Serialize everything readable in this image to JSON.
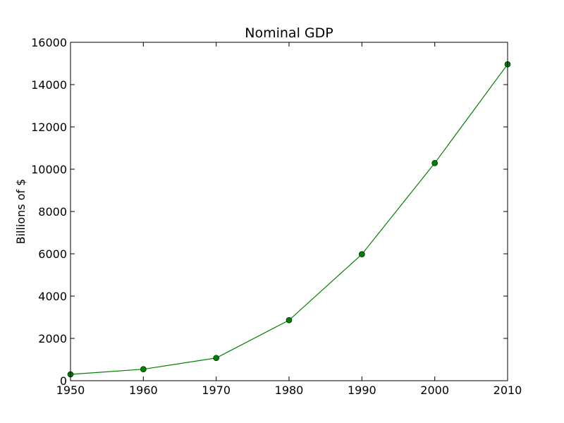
{
  "chart_data": {
    "type": "line",
    "title": "Nominal GDP",
    "xlabel": "",
    "ylabel": "Billions of $",
    "x": [
      1950,
      1960,
      1970,
      1980,
      1990,
      2000,
      2010
    ],
    "series": [
      {
        "values": [
          300,
          543,
          1075,
          2862,
          5980,
          10290,
          14960
        ]
      }
    ],
    "xlim": [
      1950,
      2010
    ],
    "ylim": [
      0,
      16000
    ],
    "xticks": [
      "1950",
      "1960",
      "1970",
      "1980",
      "1990",
      "2000",
      "2010"
    ],
    "yticks": [
      "0",
      "2000",
      "4000",
      "6000",
      "8000",
      "10000",
      "12000",
      "14000",
      "16000"
    ],
    "grid": false,
    "line_color": "#008000",
    "marker_color": "#008000",
    "marker": "circle"
  }
}
